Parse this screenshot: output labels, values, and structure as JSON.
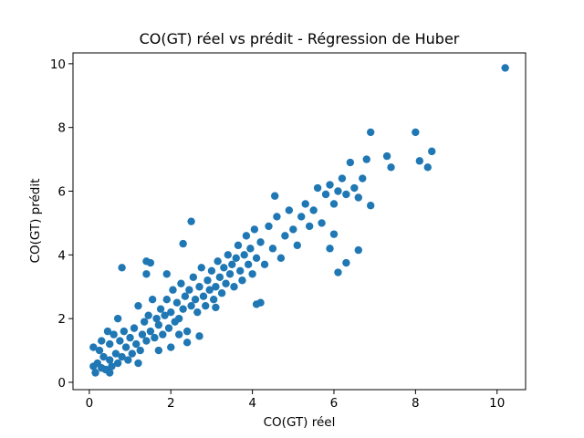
{
  "chart_data": {
    "type": "scatter",
    "title": "CO(GT) réel vs prédit - Régression de Huber",
    "x_label": "CO(GT) réel",
    "y_label": "CO(GT) prédit",
    "xlim": [
      -0.4,
      10.7
    ],
    "ylim": [
      -0.23,
      10.34
    ],
    "xticks": [
      0,
      2,
      4,
      6,
      8,
      10
    ],
    "yticks": [
      0,
      2,
      4,
      6,
      8,
      10
    ],
    "grid": false,
    "series": [
      {
        "color": "#1f77b4",
        "x": [
          0.1,
          0.15,
          0.2,
          0.25,
          0.3,
          0.3,
          0.35,
          0.4,
          0.45,
          0.5,
          0.5,
          0.55,
          0.6,
          0.65,
          0.7,
          0.7,
          0.75,
          0.8,
          0.85,
          0.9,
          0.95,
          1.0,
          1.05,
          1.1,
          1.15,
          1.2,
          1.25,
          1.3,
          1.35,
          1.4,
          1.45,
          1.5,
          1.55,
          1.6,
          1.65,
          1.7,
          1.75,
          1.8,
          1.85,
          1.9,
          1.95,
          2.0,
          2.05,
          2.1,
          2.15,
          2.2,
          2.25,
          2.3,
          2.35,
          2.4,
          2.45,
          2.5,
          2.55,
          2.6,
          2.65,
          2.7,
          2.75,
          2.8,
          2.85,
          2.9,
          2.95,
          3.0,
          3.05,
          3.1,
          3.15,
          3.2,
          3.25,
          3.3,
          3.35,
          3.4,
          3.45,
          3.5,
          3.55,
          3.6,
          3.65,
          3.7,
          3.75,
          3.8,
          3.85,
          3.9,
          3.95,
          4.0,
          4.05,
          4.1,
          4.2,
          4.3,
          4.4,
          4.5,
          4.6,
          4.7,
          4.8,
          4.9,
          5.0,
          5.1,
          5.2,
          5.3,
          5.4,
          5.5,
          5.6,
          5.7,
          5.8,
          5.9,
          6.0,
          6.1,
          6.2,
          6.3,
          6.5,
          6.4,
          6.6,
          6.7,
          2.0,
          2.2,
          1.2,
          0.5,
          10.2,
          8.4,
          8.3,
          8.1,
          8.0,
          7.3,
          7.4,
          6.9,
          6.9,
          6.8,
          6.6,
          6.3,
          6.1,
          5.9,
          6.0,
          0.8,
          1.4,
          1.5,
          1.4,
          1.9,
          2.5,
          2.3,
          4.1,
          4.2,
          3.1,
          2.7,
          2.4,
          1.7,
          0.1,
          4.55
        ],
        "y": [
          0.5,
          0.3,
          0.6,
          1.0,
          0.45,
          1.3,
          0.8,
          0.4,
          1.6,
          0.7,
          1.2,
          0.5,
          1.5,
          0.9,
          0.6,
          2.0,
          1.3,
          0.8,
          1.6,
          1.1,
          0.7,
          1.4,
          0.9,
          1.7,
          1.2,
          2.4,
          1.0,
          1.5,
          1.9,
          1.3,
          2.1,
          1.6,
          2.6,
          1.4,
          2.0,
          1.8,
          2.3,
          1.5,
          2.1,
          2.6,
          1.7,
          2.2,
          2.9,
          1.9,
          2.5,
          2.0,
          3.1,
          2.3,
          2.7,
          1.6,
          2.9,
          2.4,
          3.3,
          2.6,
          2.2,
          3.0,
          3.6,
          2.7,
          2.4,
          3.2,
          2.9,
          3.5,
          2.6,
          3.0,
          3.8,
          3.3,
          2.8,
          3.6,
          3.1,
          4.0,
          3.4,
          3.7,
          3.0,
          3.9,
          4.3,
          3.5,
          3.2,
          4.0,
          4.6,
          3.7,
          4.2,
          3.4,
          4.8,
          3.9,
          4.4,
          3.7,
          4.9,
          4.2,
          5.2,
          3.9,
          4.6,
          5.4,
          4.8,
          4.3,
          5.2,
          5.6,
          4.9,
          5.4,
          6.1,
          5.0,
          5.9,
          6.2,
          5.6,
          6.0,
          6.4,
          5.9,
          6.1,
          6.9,
          5.8,
          6.4,
          1.1,
          1.5,
          0.6,
          0.3,
          9.87,
          7.25,
          6.75,
          6.95,
          7.85,
          7.1,
          6.75,
          7.85,
          5.55,
          7.0,
          4.15,
          3.75,
          3.45,
          4.2,
          4.65,
          3.6,
          3.8,
          3.75,
          3.4,
          3.4,
          5.05,
          4.35,
          2.45,
          2.5,
          2.35,
          1.45,
          1.25,
          1.0,
          1.1,
          5.85
        ]
      }
    ]
  }
}
